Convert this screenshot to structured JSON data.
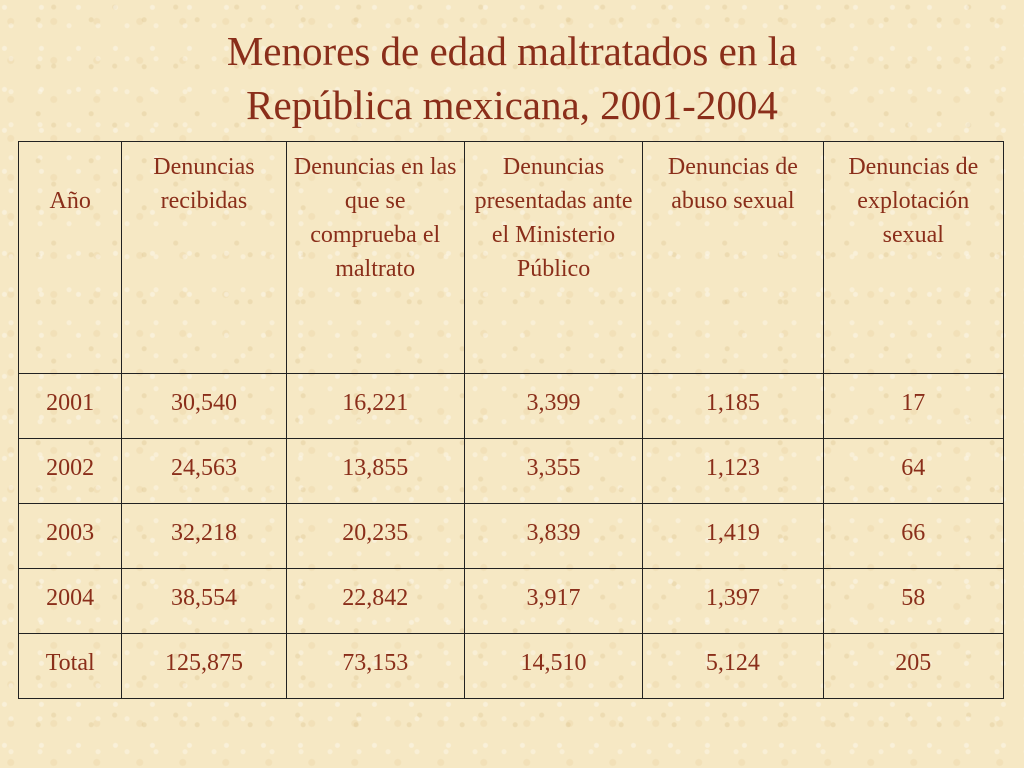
{
  "slide": {
    "title_line1": "Menores de edad maltratados en la",
    "title_line2": "República mexicana, 2001-2004"
  },
  "table": {
    "headers": [
      "Año",
      "Denuncias recibidas",
      "Denuncias en las que se comprueba el maltrato",
      "Denuncias presentadas ante el Ministerio Público",
      "Denuncias de abuso sexual",
      "Denuncias de explotación sexual"
    ],
    "rows": [
      [
        "2001",
        "30,540",
        "16,221",
        "3,399",
        "1,185",
        "17"
      ],
      [
        "2002",
        "24,563",
        "13,855",
        "3,355",
        "1,123",
        "64"
      ],
      [
        "2003",
        "32,218",
        "20,235",
        "3,839",
        "1,419",
        "66"
      ],
      [
        "2004",
        "38,554",
        "22,842",
        "3,917",
        "1,397",
        "58"
      ],
      [
        "Total",
        "125,875",
        "73,153",
        "14,510",
        "5,124",
        "205"
      ]
    ]
  },
  "colors": {
    "text": "#8a2e1a",
    "background": "#f6e8c4",
    "border": "#222222"
  }
}
